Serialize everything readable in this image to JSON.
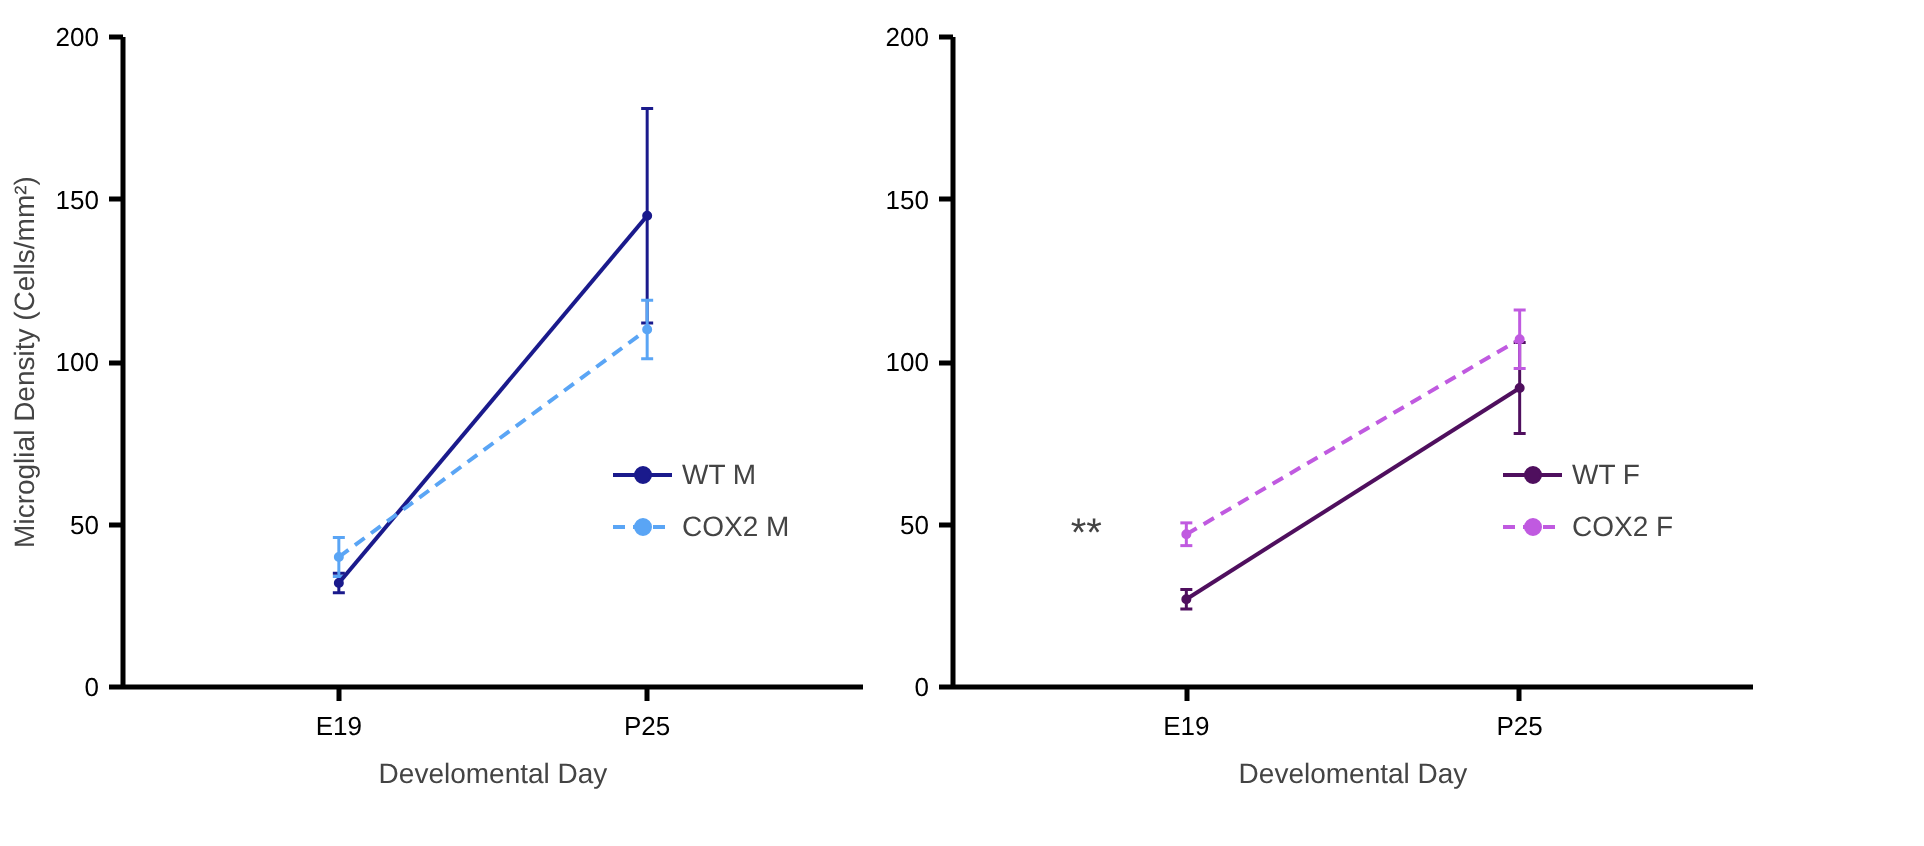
{
  "chart_data": [
    {
      "type": "line",
      "categories": [
        "E19",
        "P25"
      ],
      "xlabel": "Develomental Day",
      "ylabel": "Microglial Density (Cells/mm²)",
      "ylim": [
        0,
        200
      ],
      "yticks": [
        0,
        50,
        100,
        150,
        200
      ],
      "grid": false,
      "legend": "right",
      "marker": "circle",
      "series": [
        {
          "name": "WT M",
          "color": "#1a1a8c",
          "values": [
            32,
            145
          ],
          "errors": [
            3,
            33
          ],
          "line_style": "solid"
        },
        {
          "name": "COX2 M",
          "color": "#5aa5f5",
          "values": [
            40,
            110
          ],
          "errors": [
            6,
            9
          ],
          "line_style": "dashed"
        }
      ]
    },
    {
      "type": "line",
      "categories": [
        "E19",
        "P25"
      ],
      "xlabel": "Develomental Day",
      "ylim": [
        0,
        200
      ],
      "yticks": [
        0,
        50,
        100,
        150,
        200
      ],
      "grid": false,
      "legend": "right",
      "marker": "circle",
      "annotations": [
        "**"
      ],
      "series": [
        {
          "name": "WT F",
          "color": "#4f0f5e",
          "values": [
            27,
            92
          ],
          "errors": [
            3,
            14
          ],
          "line_style": "solid"
        },
        {
          "name": "COX2 F",
          "color": "#c05ae0",
          "values": [
            47,
            107
          ],
          "errors": [
            3.5,
            9
          ],
          "line_style": "dashed"
        }
      ]
    }
  ]
}
